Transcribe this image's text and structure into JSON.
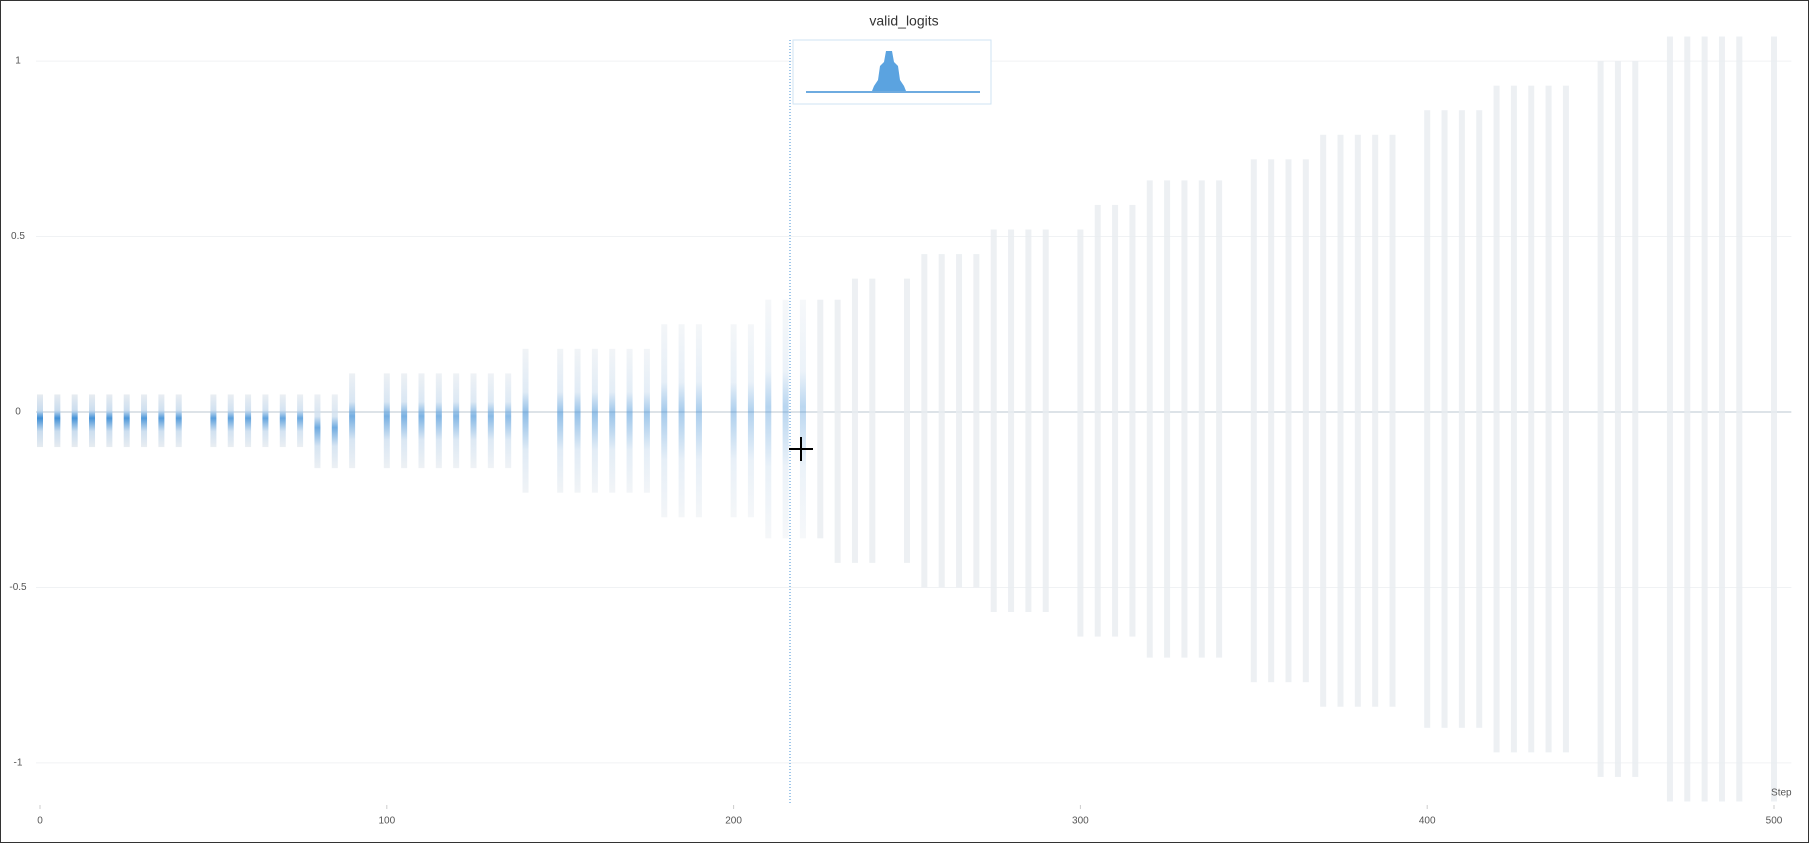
{
  "chart_data": {
    "type": "step-histogram",
    "title": "valid_logits",
    "x_label": "Step",
    "xlim": [
      0,
      505
    ],
    "ylim": [
      -1.12,
      1.1
    ],
    "xticks": [
      0,
      100,
      200,
      300,
      400,
      500
    ],
    "yticks": [
      -1,
      -0.5,
      0,
      0.5,
      1
    ],
    "grid": true,
    "color": "#3f8fd6",
    "steps": [
      0,
      5,
      10,
      15,
      20,
      25,
      30,
      35,
      40,
      50,
      55,
      60,
      65,
      70,
      75,
      80,
      85,
      90,
      100,
      105,
      110,
      115,
      120,
      125,
      130,
      135,
      140,
      150,
      155,
      160,
      165,
      170,
      175,
      180,
      185,
      190,
      200,
      205,
      210,
      215,
      220,
      225,
      230,
      235,
      240,
      250,
      255,
      260,
      265,
      270,
      275,
      280,
      285,
      290,
      300,
      305,
      310,
      315,
      320,
      325,
      330,
      335,
      340,
      350,
      355,
      360,
      365,
      370,
      375,
      380,
      385,
      390,
      400,
      405,
      410,
      415,
      420,
      425,
      430,
      435,
      440,
      450,
      455,
      460,
      470,
      475,
      480,
      485,
      490,
      500
    ],
    "max": [
      0.05,
      0.05,
      0.05,
      0.05,
      0.05,
      0.05,
      0.05,
      0.05,
      0.05,
      0.05,
      0.05,
      0.05,
      0.05,
      0.05,
      0.05,
      0.05,
      0.05,
      0.11,
      0.11,
      0.11,
      0.11,
      0.11,
      0.11,
      0.11,
      0.11,
      0.11,
      0.18,
      0.18,
      0.18,
      0.18,
      0.18,
      0.18,
      0.18,
      0.25,
      0.25,
      0.25,
      0.25,
      0.25,
      0.32,
      0.32,
      0.32,
      0.32,
      0.32,
      0.38,
      0.38,
      0.38,
      0.45,
      0.45,
      0.45,
      0.45,
      0.52,
      0.52,
      0.52,
      0.52,
      0.52,
      0.59,
      0.59,
      0.59,
      0.66,
      0.66,
      0.66,
      0.66,
      0.66,
      0.72,
      0.72,
      0.72,
      0.72,
      0.79,
      0.79,
      0.79,
      0.79,
      0.79,
      0.86,
      0.86,
      0.86,
      0.86,
      0.93,
      0.93,
      0.93,
      0.93,
      0.93,
      1,
      1,
      1,
      1.07,
      1.07,
      1.07,
      1.07,
      1.07,
      1.07
    ],
    "min": [
      -0.1,
      -0.1,
      -0.1,
      -0.1,
      -0.1,
      -0.1,
      -0.1,
      -0.1,
      -0.1,
      -0.1,
      -0.1,
      -0.1,
      -0.1,
      -0.1,
      -0.1,
      -0.16,
      -0.16,
      -0.16,
      -0.16,
      -0.16,
      -0.16,
      -0.16,
      -0.16,
      -0.16,
      -0.16,
      -0.16,
      -0.23,
      -0.23,
      -0.23,
      -0.23,
      -0.23,
      -0.23,
      -0.23,
      -0.3,
      -0.3,
      -0.3,
      -0.3,
      -0.3,
      -0.36,
      -0.36,
      -0.36,
      -0.36,
      -0.43,
      -0.43,
      -0.43,
      -0.43,
      -0.5,
      -0.5,
      -0.5,
      -0.5,
      -0.57,
      -0.57,
      -0.57,
      -0.57,
      -0.64,
      -0.64,
      -0.64,
      -0.64,
      -0.7,
      -0.7,
      -0.7,
      -0.7,
      -0.7,
      -0.77,
      -0.77,
      -0.77,
      -0.77,
      -0.84,
      -0.84,
      -0.84,
      -0.84,
      -0.84,
      -0.9,
      -0.9,
      -0.9,
      -0.9,
      -0.97,
      -0.97,
      -0.97,
      -0.97,
      -0.97,
      -1.04,
      -1.04,
      -1.04,
      -1.11,
      -1.11,
      -1.11,
      -1.11,
      -1.11,
      -1.11
    ]
  }
}
